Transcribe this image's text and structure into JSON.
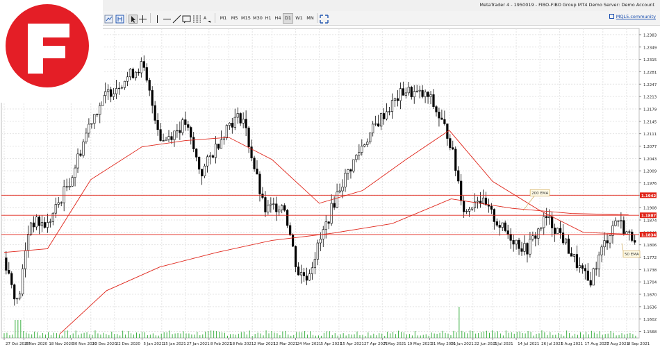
{
  "window": {
    "title": "MetaTrader 4 - 1950019 - FIBO-FIBO Group MT4 Demo Server: Demo Account"
  },
  "toolbar": {
    "timeframes": [
      "M1",
      "M5",
      "M15",
      "M30",
      "H1",
      "H4",
      "D1",
      "W1",
      "MN"
    ],
    "active_timeframe": "D1",
    "community_label": "MQL5.community"
  },
  "logo": {
    "name": "F logo",
    "color": "#e41e26"
  },
  "colors": {
    "ema_line": "#e0261b",
    "hline": "#e0261b",
    "candle": "#000000",
    "volume": "#3cb043",
    "grid": "#e4e4e4"
  },
  "chart_data": {
    "type": "line",
    "instrument_timeframe": "D1",
    "y_ticks": [
      "1.2383",
      "1.2349",
      "1.2315",
      "1.2281",
      "1.2247",
      "1.2213",
      "1.2179",
      "1.2145",
      "1.2111",
      "1.2077",
      "1.2043",
      "1.2009",
      "1.1976",
      "1.1942",
      "1.1908",
      "1.1874",
      "1.1840",
      "1.1806",
      "1.1772",
      "1.1738",
      "1.1704",
      "1.1670",
      "1.1636",
      "1.1602",
      "1.1568"
    ],
    "x_ticks": [
      "27 Oct 2020",
      "6 Nov 2020",
      "18 Nov 2020",
      "30 Nov 2020",
      "10 Dec 2020",
      "22 Dec 2020",
      "5 Jan 2021",
      "15 Jan 2021",
      "27 Jan 2021",
      "8 Feb 2021",
      "18 Feb 2021",
      "2 Mar 2021",
      "12 Mar 2021",
      "24 Mar 2021",
      "5 Apr 2021",
      "15 Apr 2021",
      "27 Apr 2021",
      "7 May 2021",
      "19 May 2021",
      "31 May 2021",
      "10 Jun 2021",
      "22 Jun 2021",
      "2 Jul 2021",
      "14 Jul 2021",
      "26 Jul 2021",
      "5 Aug 2021",
      "17 Aug 2021",
      "27 Aug 2021",
      "8 Sep 2021"
    ],
    "ylim": [
      1.155,
      1.24
    ],
    "price_levels": [
      {
        "label": "1.1942",
        "value": 1.1942
      },
      {
        "label": "1.1887",
        "value": 1.1887
      },
      {
        "label": "1.1834",
        "value": 1.1834
      }
    ],
    "annotations": [
      {
        "text": "200 EMA",
        "value": 1.1942,
        "date_index": 224
      },
      {
        "text": "50 EMA",
        "value": 1.1772,
        "date_index": 232
      }
    ],
    "series": [
      {
        "name": "200 EMA",
        "x": [
          "2020-11-24",
          "2020-12-18",
          "2021-01-14",
          "2021-02-12",
          "2021-03-12",
          "2021-04-12",
          "2021-05-12",
          "2021-06-11",
          "2021-07-12",
          "2021-08-11",
          "2021-09-09"
        ],
        "values": [
          1.156,
          1.168,
          1.1745,
          1.1785,
          1.1818,
          1.1838,
          1.1864,
          1.1932,
          1.1906,
          1.1892,
          1.1888
        ]
      },
      {
        "name": "50 EMA",
        "x": [
          "2020-10-27",
          "2020-11-18",
          "2020-12-10",
          "2021-01-05",
          "2021-01-27",
          "2021-02-18",
          "2021-03-12",
          "2021-04-05",
          "2021-04-27",
          "2021-05-19",
          "2021-06-10",
          "2021-07-02",
          "2021-07-26",
          "2021-08-17",
          "2021-09-09"
        ],
        "values": [
          1.1785,
          1.1795,
          1.1985,
          1.2075,
          1.2092,
          1.2101,
          1.204,
          1.192,
          1.1955,
          1.204,
          1.212,
          1.198,
          1.19,
          1.184,
          1.1835
        ]
      }
    ],
    "price_path": {
      "dates": [
        "2020-10-27",
        "2020-11-03",
        "2020-11-09",
        "2020-11-18",
        "2020-11-30",
        "2020-12-10",
        "2020-12-18",
        "2021-01-05",
        "2021-01-15",
        "2021-01-27",
        "2021-02-04",
        "2021-02-18",
        "2021-02-25",
        "2021-03-08",
        "2021-03-18",
        "2021-03-25",
        "2021-03-30",
        "2021-04-15",
        "2021-04-27",
        "2021-05-07",
        "2021-05-18",
        "2021-05-31",
        "2021-06-10",
        "2021-06-18",
        "2021-06-24",
        "2021-07-07",
        "2021-07-19",
        "2021-07-29",
        "2021-08-05",
        "2021-08-13",
        "2021-08-20",
        "2021-08-27",
        "2021-09-03",
        "2021-09-09"
      ],
      "values": [
        1.177,
        1.164,
        1.187,
        1.186,
        1.199,
        1.215,
        1.222,
        1.23,
        1.209,
        1.214,
        1.2,
        1.214,
        1.216,
        1.19,
        1.192,
        1.173,
        1.172,
        1.196,
        1.208,
        1.216,
        1.223,
        1.221,
        1.21,
        1.189,
        1.194,
        1.185,
        1.179,
        1.188,
        1.184,
        1.176,
        1.17,
        1.18,
        1.188,
        1.183
      ]
    },
    "volume_x_ticks_start": "2020-10-27"
  }
}
